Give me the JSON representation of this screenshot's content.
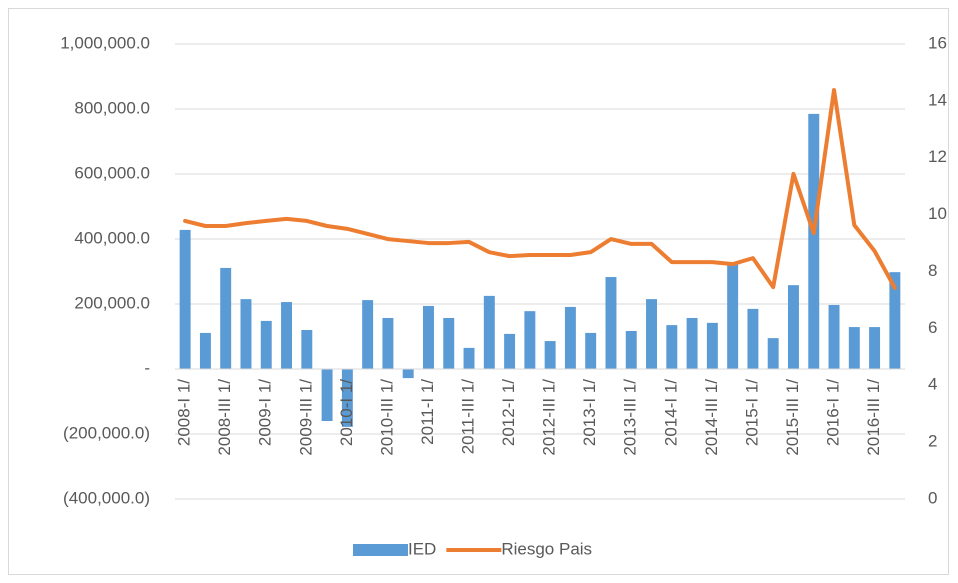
{
  "chart_data": {
    "type": "bar_line",
    "categories": [
      "2008-I 1/",
      null,
      "2008-III 1/",
      null,
      "2009-I 1/",
      null,
      "2009-III 1/",
      null,
      "2010-I 1/",
      null,
      "2010-III 1/",
      null,
      "2011-I 1/",
      null,
      "2011-III 1/",
      null,
      "2012-I 1/",
      null,
      "2012-III 1/",
      null,
      "2013-I 1/",
      null,
      "2013-III 1/",
      null,
      "2014-I 1/",
      null,
      "2014-III 1/",
      null,
      "2015-I 1/",
      null,
      "2015-III 1/",
      null,
      "2016-I 1/",
      null,
      "2016-III 1/",
      null
    ],
    "series": [
      {
        "name": "IED",
        "color": "#5b9bd5",
        "type": "bar",
        "values": [
          428000,
          111000,
          311000,
          215000,
          148000,
          206000,
          120000,
          -160000,
          -178000,
          212000,
          157000,
          -28000,
          194000,
          157000,
          65000,
          225000,
          108000,
          178000,
          86000,
          191000,
          111000,
          283000,
          117000,
          215000,
          135000,
          157000,
          142000,
          326000,
          185000,
          95000,
          258000,
          785000,
          197000,
          129000,
          129000,
          298000
        ]
      },
      {
        "name": "Riesgo Pais",
        "color": "#ed7d31",
        "type": "line",
        "axis": "y2",
        "values": [
          9.78,
          9.6,
          9.6,
          9.7,
          9.78,
          9.85,
          9.78,
          9.6,
          9.5,
          9.32,
          9.14,
          9.07,
          9.0,
          9.0,
          9.04,
          8.68,
          8.54,
          8.58,
          8.58,
          8.58,
          8.68,
          9.14,
          8.97,
          8.97,
          8.33,
          8.33,
          8.33,
          8.26,
          8.47,
          7.45,
          11.43,
          9.35,
          14.38,
          9.63,
          8.72,
          7.42
        ]
      }
    ],
    "ylim": [
      -400000,
      1000000
    ],
    "yticks": [
      {
        "value": -400000,
        "label": "(400,000.0)"
      },
      {
        "value": -200000,
        "label": "(200,000.0)"
      },
      {
        "value": 0,
        "label": "-"
      },
      {
        "value": 200000,
        "label": "200,000.0"
      },
      {
        "value": 400000,
        "label": "400,000.0"
      },
      {
        "value": 600000,
        "label": "600,000.0"
      },
      {
        "value": 800000,
        "label": "800,000.0"
      },
      {
        "value": 1000000,
        "label": "1,000,000.0"
      }
    ],
    "y2lim": [
      0,
      16
    ],
    "y2ticks": [
      0,
      2,
      4,
      6,
      8,
      10,
      12,
      14,
      16
    ],
    "grid": true,
    "legend": "bottom"
  }
}
